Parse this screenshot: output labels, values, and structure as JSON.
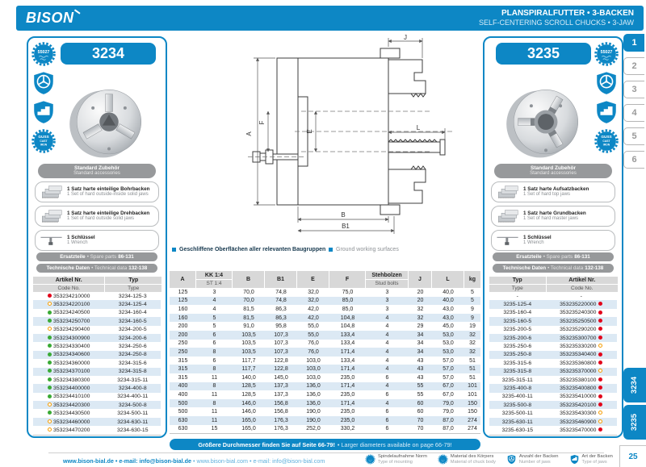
{
  "header": {
    "logo": "BISON",
    "title_de": "PLANSPIRALFUTTER • 3-BACKEN",
    "title_en": "SELF-CENTERING SCROLL CHUCKS • 3-JAW"
  },
  "pills": {
    "acc_de": "Standard Zubehör",
    "acc_en": "Standard accessories",
    "spare_de": "Ersatzteile",
    "spare_en": "• Spare parts",
    "spare_pages": "86-131",
    "tech_de": "Technische Daten",
    "tech_en": "• Technical data",
    "tech_pages": "132-138"
  },
  "left_panel": {
    "model": "3234",
    "badges": [
      {
        "name": "norm-55027-badge",
        "label": "55027"
      },
      {
        "name": "mounting-type-badge"
      },
      {
        "name": "jaw-profile-badge"
      },
      {
        "name": "cast-iron-badge",
        "label": "GUSS CAST IRON"
      }
    ],
    "accessories": [
      {
        "de": "1 Satz harte einteilige Bohrbacken",
        "en": "1 Set of hard outside-inside solid jaws",
        "icon": "jaws"
      },
      {
        "de": "1 Satz harte einteilige Drehbacken",
        "en": "1 Set of hard outside solid jaws",
        "icon": "jaws"
      },
      {
        "de": "1 Schlüssel",
        "en": "1 Wrench",
        "icon": "wrench"
      }
    ],
    "table": {
      "col1_de": "Artikel Nr.",
      "col1_en": "Code No.",
      "col2_de": "Typ",
      "col2_en": "Type",
      "rows": [
        [
          "red",
          "353234210000",
          "3234-125-3"
        ],
        [
          "orange",
          "353234220100",
          "3234-125-4"
        ],
        [
          "green",
          "353234240500",
          "3234-160-4"
        ],
        [
          "green",
          "353234250700",
          "3234-160-5"
        ],
        [
          "orange",
          "353234290400",
          "3234-200-5"
        ],
        [
          "green",
          "353234300900",
          "3234-200-6"
        ],
        [
          "green",
          "353234330400",
          "3234-250-6"
        ],
        [
          "green",
          "353234340600",
          "3234-250-8"
        ],
        [
          "green",
          "353234360000",
          "3234-315-6"
        ],
        [
          "green",
          "353234370100",
          "3234-315-8"
        ],
        [
          "green",
          "353234380300",
          "3234-315-11"
        ],
        [
          "green",
          "353234400000",
          "3234-400-8"
        ],
        [
          "green",
          "353234410100",
          "3234-400-11"
        ],
        [
          "orange",
          "353234420300",
          "3234-500-8"
        ],
        [
          "green",
          "353234430500",
          "3234-500-11"
        ],
        [
          "orange",
          "353234460000",
          "3234-630-11"
        ],
        [
          "orange",
          "353234470200",
          "3234-630-15"
        ]
      ]
    }
  },
  "right_panel": {
    "model": "3235",
    "badges": [
      {
        "name": "norm-55027-badge",
        "label": "55027"
      },
      {
        "name": "mounting-type-badge"
      },
      {
        "name": "jaw-profile-badge"
      },
      {
        "name": "cast-iron-badge",
        "label": "GUSS CAST IRON"
      }
    ],
    "accessories": [
      {
        "de": "1 Satz harte Aufsatzbacken",
        "en": "1 Set of hard top jaws",
        "icon": "jaws"
      },
      {
        "de": "1 Satz harte Grundbacken",
        "en": "1 Set of hard master jaws",
        "icon": "jaws"
      },
      {
        "de": "1 Schlüssel",
        "en": "1 Wrench",
        "icon": "wrench"
      }
    ],
    "table": {
      "col1_de": "Typ",
      "col1_en": "Type",
      "col2_de": "Artikel Nr.",
      "col2_en": "Code No.",
      "rows": [
        [
          null,
          "-",
          "-"
        ],
        [
          "red",
          "3235-125-4",
          "353235220000"
        ],
        [
          "red",
          "3235-160-4",
          "353235240300"
        ],
        [
          "red",
          "3235-160-5",
          "353235250500"
        ],
        [
          "red",
          "3235-200-5",
          "353235290200"
        ],
        [
          "red",
          "3235-200-6",
          "353235300700"
        ],
        [
          "orange",
          "3235-250-6",
          "353235330200"
        ],
        [
          "red",
          "3235-250-8",
          "353235340400"
        ],
        [
          "red",
          "3235-315-6",
          "353235360800"
        ],
        [
          "orange",
          "3235-315-8",
          "353235370000"
        ],
        [
          "red",
          "3235-315-11",
          "353235380100"
        ],
        [
          "red",
          "3235-400-8",
          "353235400800"
        ],
        [
          "red",
          "3235-400-11",
          "353235410000"
        ],
        [
          "red",
          "3235-500-8",
          "353235420100"
        ],
        [
          "orange",
          "3235-500-11",
          "353235430300"
        ],
        [
          "orange",
          "3235-630-11",
          "353235460900"
        ],
        [
          "red",
          "3235-630-15",
          "353235470000"
        ]
      ]
    }
  },
  "drawing": {
    "labels": {
      "A": "A",
      "B": "B",
      "B1": "B1",
      "E": "E",
      "F": "F",
      "J": "J",
      "L": "L"
    }
  },
  "legend": [
    {
      "text": "Geschliffene Oberflächen aller relevanten Baugruppen",
      "style": "bold"
    },
    {
      "text": "Ground working surfaces",
      "style": "light"
    }
  ],
  "main_table": {
    "columns": [
      {
        "label": "A"
      },
      {
        "label": "KK 1:4",
        "sub": "ST 1:4"
      },
      {
        "label": "B"
      },
      {
        "label": "B1"
      },
      {
        "label": "E"
      },
      {
        "label": "F"
      },
      {
        "label": "Stehbolzen",
        "sub": "Stud bolts"
      },
      {
        "label": "J"
      },
      {
        "label": "L"
      },
      {
        "label": "kg"
      }
    ],
    "rows": [
      [
        "125",
        "3",
        "70,0",
        "74,8",
        "32,0",
        "75,0",
        "3",
        "20",
        "40,0",
        "5"
      ],
      [
        "125",
        "4",
        "70,0",
        "74,8",
        "32,0",
        "85,0",
        "3",
        "20",
        "40,0",
        "5"
      ],
      [
        "160",
        "4",
        "81,5",
        "86,3",
        "42,0",
        "85,0",
        "3",
        "32",
        "43,0",
        "9"
      ],
      [
        "160",
        "5",
        "81,5",
        "86,3",
        "42,0",
        "104,8",
        "4",
        "32",
        "43,0",
        "9"
      ],
      [
        "200",
        "5",
        "91,0",
        "95,8",
        "55,0",
        "104,8",
        "4",
        "29",
        "45,0",
        "19"
      ],
      [
        "200",
        "6",
        "103,5",
        "107,3",
        "55,0",
        "133,4",
        "4",
        "34",
        "53,0",
        "32"
      ],
      [
        "250",
        "6",
        "103,5",
        "107,3",
        "76,0",
        "133,4",
        "4",
        "34",
        "53,0",
        "32"
      ],
      [
        "250",
        "8",
        "103,5",
        "107,3",
        "76,0",
        "171,4",
        "4",
        "34",
        "53,0",
        "32"
      ],
      [
        "315",
        "6",
        "117,7",
        "122,8",
        "103,0",
        "133,4",
        "4",
        "43",
        "57,0",
        "51"
      ],
      [
        "315",
        "8",
        "117,7",
        "122,8",
        "103,0",
        "171,4",
        "4",
        "43",
        "57,0",
        "51"
      ],
      [
        "315",
        "11",
        "140,0",
        "145,0",
        "103,0",
        "235,0",
        "6",
        "43",
        "57,0",
        "51"
      ],
      [
        "400",
        "8",
        "128,5",
        "137,3",
        "136,0",
        "171,4",
        "4",
        "55",
        "67,0",
        "101"
      ],
      [
        "400",
        "11",
        "128,5",
        "137,3",
        "136,0",
        "235,0",
        "6",
        "55",
        "67,0",
        "101"
      ],
      [
        "500",
        "8",
        "146,0",
        "156,8",
        "136,0",
        "171,4",
        "4",
        "60",
        "79,0",
        "150"
      ],
      [
        "500",
        "11",
        "146,0",
        "156,8",
        "190,0",
        "235,0",
        "6",
        "60",
        "79,0",
        "150"
      ],
      [
        "630",
        "11",
        "165,0",
        "176,3",
        "190,0",
        "235,0",
        "6",
        "70",
        "87,0",
        "274"
      ],
      [
        "630",
        "15",
        "165,0",
        "176,3",
        "252,0",
        "330,2",
        "6",
        "70",
        "87,0",
        "274"
      ]
    ]
  },
  "banner": {
    "de": "Größere Durchmesser finden Sie auf Seite 66-79!",
    "en": "• Larger diameters available on page 66-79!"
  },
  "sidebar": {
    "tabs": [
      "1",
      "2",
      "3",
      "4",
      "5",
      "6"
    ],
    "active_index": 0,
    "model_tabs": [
      "3234",
      "3235"
    ],
    "page_number": "25"
  },
  "footer": {
    "links_bold": "www.bison-bial.de • e-mail: info@bison-bial.de",
    "links_light": "• www.bison-bial.com • e-mail: info@bison-bial.com",
    "icons": [
      {
        "de": "Spindelaufnahme Norm",
        "en": "Type of mounting",
        "icon": "gear-norm"
      },
      {
        "de": "Material des Körpers",
        "en": "Material of chuck body",
        "icon": "gear-material"
      },
      {
        "de": "Anzahl der Backen",
        "en": "Number of jaws",
        "icon": "shield-count"
      },
      {
        "de": "Art der Backen",
        "en": "Type of jaws",
        "icon": "shield-type"
      }
    ]
  },
  "colors": {
    "brand_blue": "#0d87c5",
    "row_alt": "#dce9f4",
    "header_gray": "#d8d8d8",
    "dot_green": "#3aaa35",
    "dot_orange": "#f59c00",
    "dot_red": "#e2001a"
  }
}
